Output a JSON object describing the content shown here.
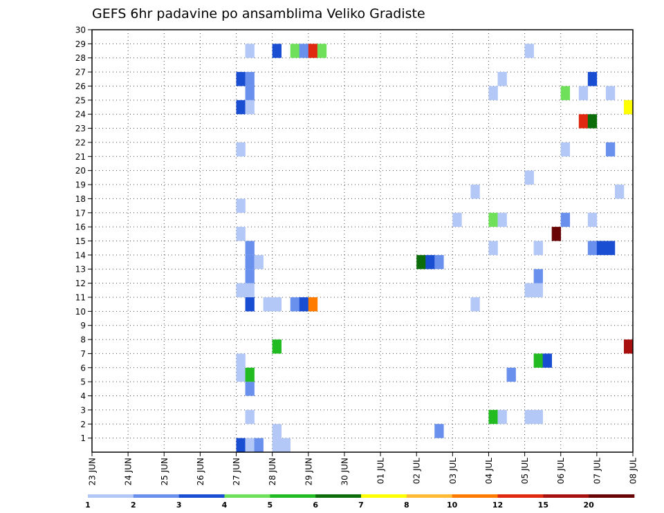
{
  "chart_data": {
    "type": "heatmap",
    "title": "GEFS 6hr padavine po ansamblima Veliko Gradiste",
    "xlabel": "",
    "ylabel": "",
    "x_tick_labels": [
      "23 JUN",
      "24 JUN",
      "25 JUN",
      "26 JUN",
      "27 JUN",
      "28 JUN",
      "29 JUN",
      "30 JUN",
      "01 JUL",
      "02 JUL",
      "03 JUL",
      "04 JUL",
      "05 JUL",
      "06 JUL",
      "07 JUL",
      "08 JUL"
    ],
    "y_tick_labels": [
      "1",
      "2",
      "3",
      "4",
      "5",
      "6",
      "7",
      "8",
      "9",
      "10",
      "11",
      "12",
      "13",
      "14",
      "15",
      "16",
      "17",
      "18",
      "19",
      "20",
      "21",
      "22",
      "23",
      "24",
      "25",
      "26",
      "27",
      "28",
      "29",
      "30"
    ],
    "xlim": [
      0,
      60
    ],
    "ylim": [
      0,
      30
    ],
    "grid": true,
    "legend": {
      "placement": "bottom",
      "labels": [
        "1",
        "2",
        "3",
        "4",
        "5",
        "6",
        "7",
        "8",
        "10",
        "12",
        "15",
        "20"
      ],
      "colors": [
        "#b4c8f8",
        "#6a90ee",
        "#1a4ed2",
        "#6ee05a",
        "#22bb22",
        "#0b6e0b",
        "#ffff00",
        "#ffbb33",
        "#ff7b00",
        "#e02810",
        "#a81010",
        "#6a0404"
      ]
    },
    "cells": [
      {
        "x": 16,
        "y": 0,
        "v": 3
      },
      {
        "x": 16,
        "y": 11,
        "v": 1
      },
      {
        "x": 16,
        "y": 15,
        "v": 1
      },
      {
        "x": 16,
        "y": 17,
        "v": 1
      },
      {
        "x": 16,
        "y": 21,
        "v": 1
      },
      {
        "x": 16,
        "y": 24,
        "v": 3
      },
      {
        "x": 16,
        "y": 26,
        "v": 3
      },
      {
        "x": 16,
        "y": 5,
        "v": 1
      },
      {
        "x": 16,
        "y": 6,
        "v": 1
      },
      {
        "x": 17,
        "y": 0,
        "v": 1
      },
      {
        "x": 17,
        "y": 2,
        "v": 1
      },
      {
        "x": 17,
        "y": 4,
        "v": 2
      },
      {
        "x": 17,
        "y": 5,
        "v": 5
      },
      {
        "x": 17,
        "y": 10,
        "v": 3
      },
      {
        "x": 17,
        "y": 11,
        "v": 1
      },
      {
        "x": 17,
        "y": 12,
        "v": 2
      },
      {
        "x": 17,
        "y": 13,
        "v": 2
      },
      {
        "x": 17,
        "y": 14,
        "v": 2
      },
      {
        "x": 17,
        "y": 24,
        "v": 1
      },
      {
        "x": 17,
        "y": 25,
        "v": 2
      },
      {
        "x": 17,
        "y": 26,
        "v": 2
      },
      {
        "x": 17,
        "y": 28,
        "v": 1
      },
      {
        "x": 18,
        "y": 0,
        "v": 2
      },
      {
        "x": 18,
        "y": 13,
        "v": 1
      },
      {
        "x": 19,
        "y": 10,
        "v": 1
      },
      {
        "x": 20,
        "y": 0,
        "v": 1
      },
      {
        "x": 20,
        "y": 1,
        "v": 1
      },
      {
        "x": 20,
        "y": 7,
        "v": 5
      },
      {
        "x": 20,
        "y": 10,
        "v": 1
      },
      {
        "x": 20,
        "y": 28,
        "v": 3
      },
      {
        "x": 21,
        "y": 0,
        "v": 1
      },
      {
        "x": 22,
        "y": 10,
        "v": 2
      },
      {
        "x": 22,
        "y": 28,
        "v": 4
      },
      {
        "x": 23,
        "y": 10,
        "v": 3
      },
      {
        "x": 23,
        "y": 28,
        "v": 2
      },
      {
        "x": 24,
        "y": 10,
        "v": 10
      },
      {
        "x": 24,
        "y": 28,
        "v": 12
      },
      {
        "x": 25,
        "y": 28,
        "v": 4
      },
      {
        "x": 36,
        "y": 13,
        "v": 6
      },
      {
        "x": 37,
        "y": 13,
        "v": 3
      },
      {
        "x": 38,
        "y": 1,
        "v": 2
      },
      {
        "x": 38,
        "y": 13,
        "v": 2
      },
      {
        "x": 40,
        "y": 16,
        "v": 1
      },
      {
        "x": 42,
        "y": 10,
        "v": 1
      },
      {
        "x": 42,
        "y": 18,
        "v": 1
      },
      {
        "x": 44,
        "y": 2,
        "v": 5
      },
      {
        "x": 44,
        "y": 14,
        "v": 1
      },
      {
        "x": 44,
        "y": 16,
        "v": 4
      },
      {
        "x": 44,
        "y": 25,
        "v": 1
      },
      {
        "x": 45,
        "y": 2,
        "v": 1
      },
      {
        "x": 45,
        "y": 16,
        "v": 1
      },
      {
        "x": 45,
        "y": 26,
        "v": 1
      },
      {
        "x": 46,
        "y": 5,
        "v": 2
      },
      {
        "x": 48,
        "y": 2,
        "v": 1
      },
      {
        "x": 48,
        "y": 11,
        "v": 1
      },
      {
        "x": 48,
        "y": 19,
        "v": 1
      },
      {
        "x": 48,
        "y": 28,
        "v": 1
      },
      {
        "x": 49,
        "y": 2,
        "v": 1
      },
      {
        "x": 49,
        "y": 6,
        "v": 5
      },
      {
        "x": 49,
        "y": 11,
        "v": 1
      },
      {
        "x": 49,
        "y": 12,
        "v": 2
      },
      {
        "x": 49,
        "y": 14,
        "v": 1
      },
      {
        "x": 50,
        "y": 6,
        "v": 3
      },
      {
        "x": 51,
        "y": 15,
        "v": 20
      },
      {
        "x": 52,
        "y": 16,
        "v": 2
      },
      {
        "x": 52,
        "y": 21,
        "v": 1
      },
      {
        "x": 52,
        "y": 25,
        "v": 4
      },
      {
        "x": 54,
        "y": 23,
        "v": 12
      },
      {
        "x": 54,
        "y": 25,
        "v": 1
      },
      {
        "x": 55,
        "y": 14,
        "v": 2
      },
      {
        "x": 55,
        "y": 16,
        "v": 1
      },
      {
        "x": 55,
        "y": 23,
        "v": 6
      },
      {
        "x": 55,
        "y": 26,
        "v": 3
      },
      {
        "x": 56,
        "y": 14,
        "v": 3
      },
      {
        "x": 57,
        "y": 14,
        "v": 3
      },
      {
        "x": 57,
        "y": 21,
        "v": 2
      },
      {
        "x": 57,
        "y": 25,
        "v": 1
      },
      {
        "x": 58,
        "y": 18,
        "v": 1
      },
      {
        "x": 59,
        "y": 7,
        "v": 15
      },
      {
        "x": 59,
        "y": 24,
        "v": 7
      }
    ]
  }
}
